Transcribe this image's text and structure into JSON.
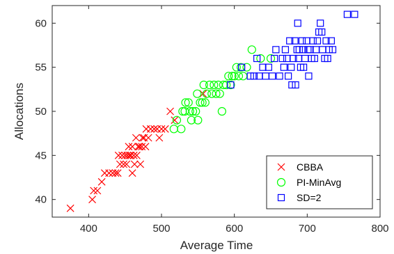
{
  "chart_data": {
    "type": "scatter",
    "title": "",
    "xlabel": "Average Time",
    "ylabel": "Allocations",
    "xlim": [
      350,
      800
    ],
    "ylim": [
      38,
      62
    ],
    "xticks": [
      400,
      500,
      600,
      700,
      800
    ],
    "yticks": [
      40,
      45,
      50,
      55,
      60
    ],
    "grid": false,
    "legend_position": "bottom-right",
    "series": [
      {
        "name": "CBBA",
        "marker": "x",
        "color": "#ff0000",
        "points": [
          [
            375,
            39
          ],
          [
            405,
            40
          ],
          [
            407,
            41
          ],
          [
            412,
            41
          ],
          [
            418,
            42
          ],
          [
            422,
            43
          ],
          [
            428,
            43
          ],
          [
            433,
            43
          ],
          [
            437,
            43
          ],
          [
            440,
            43
          ],
          [
            441,
            45
          ],
          [
            443,
            44
          ],
          [
            446,
            45
          ],
          [
            448,
            44
          ],
          [
            450,
            45
          ],
          [
            452,
            44
          ],
          [
            453,
            45
          ],
          [
            455,
            46
          ],
          [
            456,
            45
          ],
          [
            458,
            45
          ],
          [
            460,
            46
          ],
          [
            460,
            43
          ],
          [
            462,
            45
          ],
          [
            463,
            44
          ],
          [
            465,
            47
          ],
          [
            466,
            45
          ],
          [
            468,
            46
          ],
          [
            470,
            46
          ],
          [
            471,
            44
          ],
          [
            473,
            46
          ],
          [
            474,
            47
          ],
          [
            476,
            47
          ],
          [
            478,
            46
          ],
          [
            479,
            48
          ],
          [
            482,
            47
          ],
          [
            485,
            48
          ],
          [
            490,
            48
          ],
          [
            494,
            48
          ],
          [
            497,
            47
          ],
          [
            500,
            48
          ],
          [
            505,
            48
          ],
          [
            512,
            50
          ],
          [
            518,
            49
          ],
          [
            557,
            52
          ]
        ]
      },
      {
        "name": "PI-MinAvg",
        "marker": "circle",
        "color": "#00ff00",
        "points": [
          [
            517,
            48
          ],
          [
            521,
            49
          ],
          [
            527,
            48
          ],
          [
            529,
            50
          ],
          [
            532,
            50
          ],
          [
            533,
            51
          ],
          [
            537,
            51
          ],
          [
            539,
            50
          ],
          [
            541,
            49
          ],
          [
            543,
            50
          ],
          [
            547,
            50
          ],
          [
            549,
            52
          ],
          [
            550,
            49
          ],
          [
            553,
            51
          ],
          [
            556,
            51
          ],
          [
            558,
            53
          ],
          [
            560,
            51
          ],
          [
            562,
            52
          ],
          [
            566,
            53
          ],
          [
            569,
            52
          ],
          [
            572,
            53
          ],
          [
            575,
            52
          ],
          [
            578,
            53
          ],
          [
            580,
            52
          ],
          [
            583,
            50
          ],
          [
            585,
            53
          ],
          [
            589,
            53
          ],
          [
            592,
            54
          ],
          [
            595,
            53
          ],
          [
            597,
            54
          ],
          [
            600,
            54
          ],
          [
            603,
            55
          ],
          [
            606,
            54
          ],
          [
            609,
            55
          ],
          [
            612,
            54
          ],
          [
            617,
            55
          ],
          [
            624,
            57
          ],
          [
            636,
            56
          ],
          [
            650,
            56
          ]
        ]
      },
      {
        "name": "SD=2",
        "marker": "square",
        "color": "#0000ff",
        "points": [
          [
            595,
            53
          ],
          [
            610,
            55
          ],
          [
            622,
            54
          ],
          [
            627,
            54
          ],
          [
            631,
            56
          ],
          [
            634,
            54
          ],
          [
            639,
            55
          ],
          [
            643,
            54
          ],
          [
            647,
            55
          ],
          [
            652,
            54
          ],
          [
            655,
            56
          ],
          [
            657,
            57
          ],
          [
            662,
            54
          ],
          [
            666,
            56
          ],
          [
            668,
            55
          ],
          [
            670,
            57
          ],
          [
            672,
            56
          ],
          [
            674,
            54
          ],
          [
            676,
            58
          ],
          [
            678,
            55
          ],
          [
            679,
            53
          ],
          [
            681,
            56
          ],
          [
            683,
            58
          ],
          [
            684,
            53
          ],
          [
            686,
            57
          ],
          [
            687,
            60
          ],
          [
            688,
            56
          ],
          [
            689,
            57
          ],
          [
            691,
            55
          ],
          [
            693,
            58
          ],
          [
            694,
            57
          ],
          [
            695,
            55
          ],
          [
            697,
            56
          ],
          [
            699,
            58
          ],
          [
            701,
            57
          ],
          [
            702,
            54
          ],
          [
            704,
            57
          ],
          [
            706,
            56
          ],
          [
            708,
            58
          ],
          [
            710,
            56
          ],
          [
            712,
            57
          ],
          [
            714,
            58
          ],
          [
            716,
            59
          ],
          [
            718,
            60
          ],
          [
            720,
            59
          ],
          [
            721,
            57
          ],
          [
            724,
            56
          ],
          [
            726,
            58
          ],
          [
            728,
            56
          ],
          [
            730,
            57
          ],
          [
            733,
            58
          ],
          [
            735,
            57
          ],
          [
            755,
            61
          ],
          [
            765,
            61
          ]
        ]
      }
    ]
  }
}
